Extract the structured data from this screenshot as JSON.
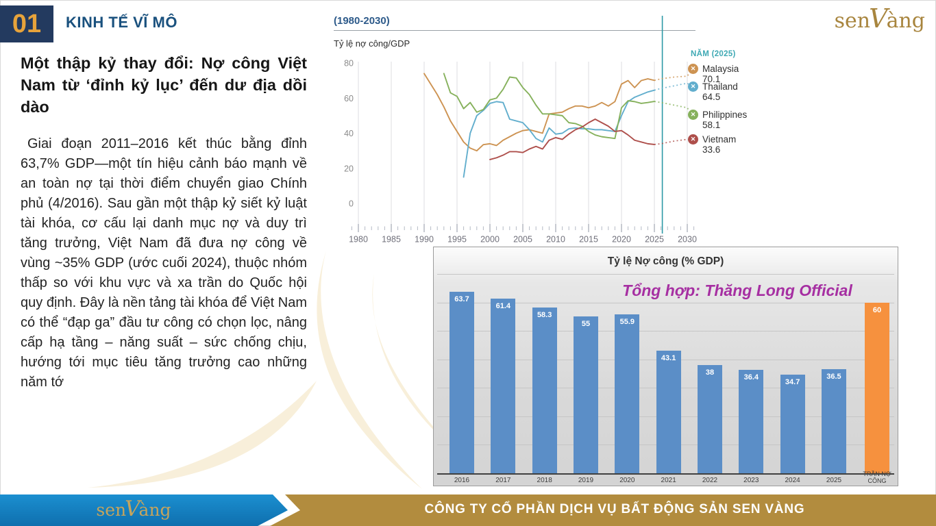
{
  "header": {
    "number": "01",
    "section_title": "KINH TẾ VĨ MÔ"
  },
  "brand": {
    "pre": "sen",
    "v": "V",
    "post": "àng"
  },
  "left": {
    "heading": "Một thập kỷ thay đổi: Nợ công Việt Nam từ ‘đỉnh kỷ lục’ đến dư địa dồi dào",
    "body": "Giai đoạn 2011–2016 kết thúc bằng đỉnh 63,7% GDP—một tín hiệu cảnh báo mạnh về an toàn nợ tại thời điểm chuyển giao Chính phủ (4/2016). Sau gần một thập kỷ siết kỷ luật tài khóa, cơ cấu lại danh mục nợ và duy trì tăng trưởng, Việt Nam đã đưa nợ công về vùng ~35% GDP (ước cuối 2024), thuộc nhóm thấp so với khu vực và xa trần do Quốc hội quy định. Đây là nền tảng tài khóa để Việt Nam có thể “đạp ga” đầu tư công có chọn lọc, nâng cấp hạ tầng – năng suất – sức chống chịu, hướng tới mục tiêu tăng trưởng cao những năm tớ"
  },
  "chart_data": [
    {
      "type": "line",
      "title": "(1980-2030)",
      "ylabel": "Tỷ lệ nợ công/GDP",
      "legend_title": "NĂM (2025)",
      "xlim": [
        1980,
        2030
      ],
      "ylim": [
        0,
        80
      ],
      "yticks": [
        0,
        20,
        40,
        60,
        80
      ],
      "xticks": [
        1980,
        1985,
        1990,
        1995,
        2000,
        2005,
        2010,
        2015,
        2020,
        2025,
        2030
      ],
      "grid": "vertical",
      "marker_year": 2026,
      "marker_color": "#2d9aa6",
      "legend_position": "right",
      "series": [
        {
          "name": "Malaysia",
          "value_2025": 70.1,
          "color": "#cd9352",
          "points": [
            [
              1990,
              74
            ],
            [
              1991,
              68
            ],
            [
              1992,
              62
            ],
            [
              1993,
              55
            ],
            [
              1994,
              47
            ],
            [
              1995,
              41
            ],
            [
              1996,
              35
            ],
            [
              1997,
              31.5
            ],
            [
              1998,
              30
            ],
            [
              1999,
              33.5
            ],
            [
              2000,
              34
            ],
            [
              2001,
              33
            ],
            [
              2002,
              36
            ],
            [
              2003,
              38
            ],
            [
              2004,
              40
            ],
            [
              2005,
              41.5
            ],
            [
              2006,
              42
            ],
            [
              2007,
              41
            ],
            [
              2008,
              40
            ],
            [
              2009,
              51
            ],
            [
              2010,
              51.5
            ],
            [
              2011,
              52
            ],
            [
              2012,
              54
            ],
            [
              2013,
              55.5
            ],
            [
              2014,
              55.5
            ],
            [
              2015,
              54.5
            ],
            [
              2016,
              55.5
            ],
            [
              2017,
              57.5
            ],
            [
              2018,
              55.5
            ],
            [
              2019,
              58
            ],
            [
              2020,
              68
            ],
            [
              2021,
              70
            ],
            [
              2022,
              66
            ],
            [
              2023,
              70
            ],
            [
              2024,
              71
            ],
            [
              2025,
              70.1
            ]
          ],
          "projection": [
            [
              2025,
              70.1
            ],
            [
              2026,
              71
            ],
            [
              2028,
              72
            ],
            [
              2030,
              72.5
            ]
          ]
        },
        {
          "name": "Thailand",
          "value_2025": 64.5,
          "color": "#62aecd",
          "points": [
            [
              1996,
              15
            ],
            [
              1997,
              40
            ],
            [
              1998,
              50
            ],
            [
              1999,
              53
            ],
            [
              2000,
              57
            ],
            [
              2001,
              58
            ],
            [
              2002,
              57.5
            ],
            [
              2003,
              48
            ],
            [
              2004,
              47
            ],
            [
              2005,
              46
            ],
            [
              2006,
              42
            ],
            [
              2007,
              37
            ],
            [
              2008,
              35
            ],
            [
              2009,
              43
            ],
            [
              2010,
              39.5
            ],
            [
              2011,
              40
            ],
            [
              2012,
              42.5
            ],
            [
              2013,
              43
            ],
            [
              2014,
              42.5
            ],
            [
              2015,
              42.5
            ],
            [
              2016,
              42
            ],
            [
              2017,
              42
            ],
            [
              2018,
              41.5
            ],
            [
              2019,
              41
            ],
            [
              2020,
              50
            ],
            [
              2021,
              58
            ],
            [
              2022,
              60.5
            ],
            [
              2023,
              62
            ],
            [
              2024,
              63.5
            ],
            [
              2025,
              64.5
            ]
          ],
          "projection": [
            [
              2025,
              64.5
            ],
            [
              2026,
              65.5
            ],
            [
              2028,
              67
            ],
            [
              2030,
              68.5
            ]
          ]
        },
        {
          "name": "Philippines",
          "value_2025": 58.1,
          "color": "#86b15c",
          "points": [
            [
              1993,
              74
            ],
            [
              1994,
              63
            ],
            [
              1995,
              61
            ],
            [
              1996,
              54
            ],
            [
              1997,
              57.5
            ],
            [
              1998,
              52
            ],
            [
              1999,
              53.5
            ],
            [
              2000,
              59
            ],
            [
              2001,
              60
            ],
            [
              2002,
              65
            ],
            [
              2003,
              72
            ],
            [
              2004,
              71.5
            ],
            [
              2005,
              66
            ],
            [
              2006,
              62
            ],
            [
              2007,
              56
            ],
            [
              2008,
              51
            ],
            [
              2009,
              51
            ],
            [
              2010,
              50.5
            ],
            [
              2011,
              50
            ],
            [
              2012,
              46
            ],
            [
              2013,
              45.5
            ],
            [
              2014,
              44
            ],
            [
              2015,
              41
            ],
            [
              2016,
              39
            ],
            [
              2017,
              38
            ],
            [
              2018,
              37.5
            ],
            [
              2019,
              37
            ],
            [
              2020,
              54.5
            ],
            [
              2021,
              58.5
            ],
            [
              2022,
              58
            ],
            [
              2023,
              57
            ],
            [
              2024,
              57.5
            ],
            [
              2025,
              58.1
            ]
          ],
          "projection": [
            [
              2025,
              58.1
            ],
            [
              2026,
              57.5
            ],
            [
              2028,
              56
            ],
            [
              2030,
              54.5
            ]
          ]
        },
        {
          "name": "Vietnam",
          "value_2025": 33.6,
          "color": "#ae4f4b",
          "points": [
            [
              2000,
              25
            ],
            [
              2001,
              26
            ],
            [
              2002,
              27.5
            ],
            [
              2003,
              29.5
            ],
            [
              2004,
              29.5
            ],
            [
              2005,
              29
            ],
            [
              2006,
              31
            ],
            [
              2007,
              32.5
            ],
            [
              2008,
              31
            ],
            [
              2009,
              36
            ],
            [
              2010,
              37.5
            ],
            [
              2011,
              36.5
            ],
            [
              2012,
              39.5
            ],
            [
              2013,
              42
            ],
            [
              2014,
              43.5
            ],
            [
              2015,
              46
            ],
            [
              2016,
              48
            ],
            [
              2017,
              46
            ],
            [
              2018,
              44
            ],
            [
              2019,
              41
            ],
            [
              2020,
              41.5
            ],
            [
              2021,
              39
            ],
            [
              2022,
              36
            ],
            [
              2023,
              35
            ],
            [
              2024,
              34
            ],
            [
              2025,
              33.6
            ]
          ],
          "projection": [
            [
              2025,
              33.6
            ],
            [
              2026,
              34
            ],
            [
              2028,
              35.5
            ],
            [
              2030,
              36.5
            ]
          ]
        }
      ]
    },
    {
      "type": "bar",
      "title": "Tỷ lệ Nợ công (% GDP)",
      "annotation": "Tổng hợp: Thăng Long Official",
      "annotation_color": "#a62fa2",
      "categories": [
        "2016",
        "2017",
        "2018",
        "2019",
        "2020",
        "2021",
        "2022",
        "2023",
        "2024",
        "2025",
        "TRẦN NỢ CÔNG"
      ],
      "values": [
        63.7,
        61.4,
        58.3,
        55,
        55.9,
        43.1,
        38,
        36.4,
        34.7,
        36.5,
        60
      ],
      "labels": [
        "63.7",
        "61.4",
        "58.3",
        "55",
        "55.9",
        "43.1",
        "38",
        "36.4",
        "34.7",
        "36.5",
        "60"
      ],
      "highlight_index": 10,
      "bar_color": "#5b8ec7",
      "highlight_color": "#f6913e",
      "ylim": [
        0,
        70
      ],
      "grid": "horizontal"
    }
  ],
  "footer": {
    "company": "CÔNG TY CỔ PHẦN DỊCH VỤ BẤT ĐỘNG SẢN SEN VÀNG"
  }
}
